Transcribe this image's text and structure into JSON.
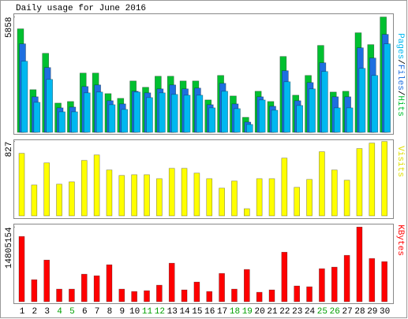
{
  "chart_data": [
    {
      "type": "bar",
      "title": "Daily usage for June 2016",
      "legend_separator": "/",
      "ylim": [
        0,
        6000
      ],
      "yticks": [
        5858
      ],
      "series": [
        {
          "name": "Hits",
          "color": "#00c030",
          "values": [
            5256,
            2167,
            4012,
            1485,
            1565,
            3009,
            3009,
            1966,
            1725,
            2608,
            2287,
            2849,
            2849,
            2608,
            2608,
            1645,
            2889,
            1846,
            762,
            2086,
            1565,
            3852,
            1886,
            2889,
            4413,
            2046,
            2086,
            5056,
            4454,
            5858
          ]
        },
        {
          "name": "Files",
          "color": "#1e6fe0",
          "values": [
            4494,
            1805,
            3290,
            1244,
            1284,
            2327,
            2407,
            1605,
            1444,
            2086,
            2006,
            2207,
            2407,
            2207,
            2247,
            1404,
            2488,
            1444,
            522,
            1805,
            1324,
            3130,
            1605,
            2528,
            3531,
            1805,
            1805,
            4293,
            3772,
            4975
          ]
        },
        {
          "name": "Pages",
          "color": "#00b8f0",
          "values": [
            3611,
            1525,
            2688,
            1043,
            1043,
            2006,
            2046,
            1404,
            1164,
            2046,
            1765,
            2006,
            1926,
            1886,
            1886,
            1244,
            2086,
            1204,
            401,
            1645,
            1123,
            2568,
            1364,
            2207,
            3090,
            1244,
            1244,
            3250,
            2889,
            4494
          ]
        }
      ]
    },
    {
      "type": "bar",
      "ylim": [
        0,
        850
      ],
      "yticks": [
        827
      ],
      "series": [
        {
          "name": "Visits",
          "color": "#ffff00",
          "values": [
            695,
            343,
            589,
            352,
            378,
            616,
            677,
            510,
            449,
            457,
            457,
            413,
            528,
            528,
            475,
            413,
            308,
            387,
            79,
            413,
            413,
            642,
            317,
            405,
            713,
            510,
            396,
            748,
            809,
            827
          ]
        }
      ]
    },
    {
      "type": "bar",
      "ylim": [
        0,
        15000000
      ],
      "yticks": [
        14805154
      ],
      "categories": [
        "1",
        "2",
        "3",
        "4",
        "5",
        "6",
        "7",
        "8",
        "9",
        "10",
        "11",
        "12",
        "13",
        "14",
        "15",
        "16",
        "17",
        "18",
        "19",
        "20",
        "21",
        "22",
        "23",
        "24",
        "25",
        "26",
        "27",
        "28",
        "29",
        "30"
      ],
      "category_colors": [
        "#000000",
        "#000000",
        "#000000",
        "#00a000",
        "#00a000",
        "#000000",
        "#000000",
        "#000000",
        "#000000",
        "#000000",
        "#00a000",
        "#00a000",
        "#000000",
        "#000000",
        "#000000",
        "#000000",
        "#000000",
        "#00a000",
        "#00a000",
        "#000000",
        "#000000",
        "#000000",
        "#000000",
        "#000000",
        "#00a000",
        "#00a000",
        "#000000",
        "#000000",
        "#000000",
        "#000000"
      ],
      "series": [
        {
          "name": "KBytes",
          "color": "#ff0000",
          "values": [
            12935000,
            4364000,
            8260000,
            2494000,
            2494000,
            5455000,
            5143000,
            7325000,
            2494000,
            2026000,
            2182000,
            3273000,
            7636000,
            2338000,
            3896000,
            2026000,
            5610000,
            2494000,
            6390000,
            1870000,
            2338000,
            9818000,
            3117000,
            2961000,
            6545000,
            6857000,
            9195000,
            14805154,
            8571000,
            7948000
          ]
        }
      ]
    }
  ]
}
